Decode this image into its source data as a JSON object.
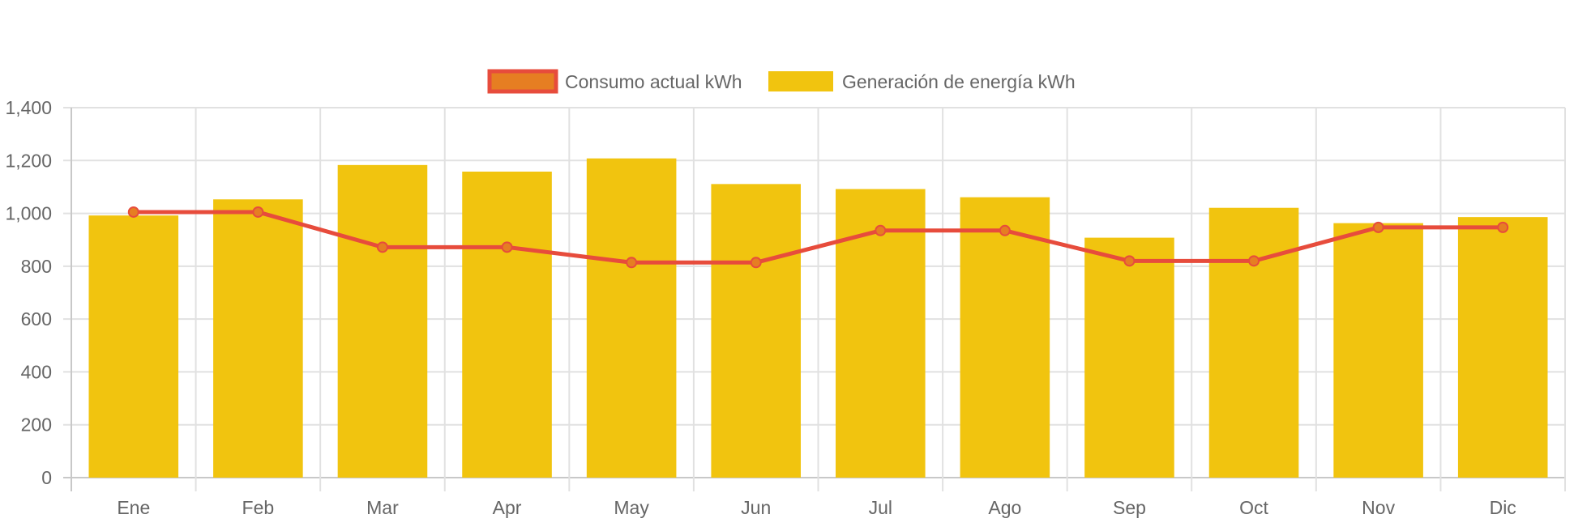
{
  "chart_data": {
    "type": "bar",
    "categories": [
      "Ene",
      "Feb",
      "Mar",
      "Apr",
      "May",
      "Jun",
      "Jul",
      "Ago",
      "Sep",
      "Oct",
      "Nov",
      "Dic"
    ],
    "series": [
      {
        "name": "Consumo actual kWh",
        "kind": "line",
        "color": "#e74c3c",
        "point_fill": "#e67e22",
        "values": [
          1005,
          1005,
          872,
          872,
          814,
          814,
          935,
          935,
          820,
          820,
          947,
          947
        ]
      },
      {
        "name": "Generación de energía kWh",
        "kind": "bar",
        "color": "#f1c40f",
        "values": [
          992,
          1053,
          1183,
          1158,
          1208,
          1111,
          1092,
          1061,
          908,
          1021,
          963,
          986
        ]
      }
    ],
    "y_ticks": [
      "0",
      "200",
      "400",
      "600",
      "800",
      "1,000",
      "1,200",
      "1,400"
    ],
    "ylim": [
      0,
      1400
    ],
    "grid": true,
    "legend_position": "top-center",
    "title": "",
    "xlabel": "",
    "ylabel": ""
  }
}
